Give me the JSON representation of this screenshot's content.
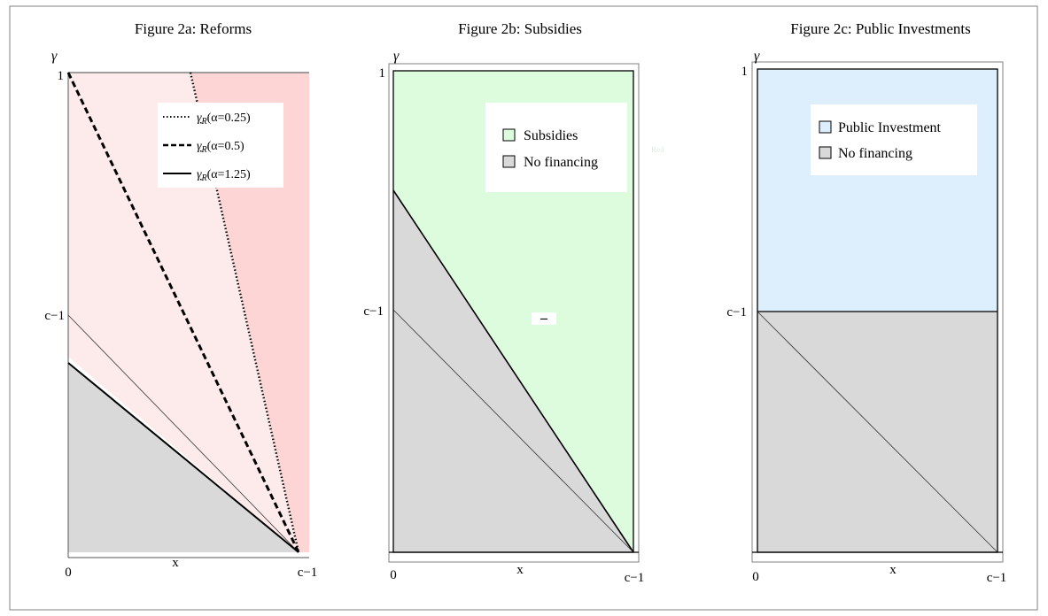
{
  "figure_a": {
    "title": "Figure 2a: Reforms",
    "y_axis_symbol": "γ",
    "y_tick_top": "1",
    "y_tick_mid": "c−1",
    "x_tick_left": "0",
    "x_label": "x",
    "x_tick_right": "c−1",
    "legend": [
      {
        "style": "dotted",
        "symbol": "γ",
        "sub": "R",
        "param": "(α=0.25)"
      },
      {
        "style": "dashed",
        "symbol": "γ",
        "sub": "R",
        "param": "(α=0.5)"
      },
      {
        "style": "solid",
        "symbol": "γ",
        "sub": "R",
        "param": "(α=1.25)"
      }
    ]
  },
  "figure_b": {
    "title": "Figure 2b: Subsidies",
    "y_axis_symbol": "γ",
    "y_tick_top": "1",
    "y_tick_mid": "c−1",
    "x_tick_left": "0",
    "x_label": "x",
    "x_tick_right": "c−1",
    "legend": [
      "Subsidies",
      "No financing"
    ],
    "faint_label": "Red",
    "center_mark": "–"
  },
  "figure_c": {
    "title": "Figure 2c: Public Investments",
    "y_axis_symbol": "γ",
    "y_tick_top": "1",
    "y_tick_mid": "c−1",
    "x_tick_left": "0",
    "x_label": "x",
    "x_tick_right": "c−1",
    "legend": [
      "Public Investment",
      "No financing"
    ]
  },
  "colors": {
    "gray_region": "#d9d9d9",
    "red_light": "#fdeaea",
    "red_strong": "#fdd5d5",
    "green_region": "#ddfbdd",
    "blue_region": "#ddeefd",
    "frame": "#808080"
  }
}
